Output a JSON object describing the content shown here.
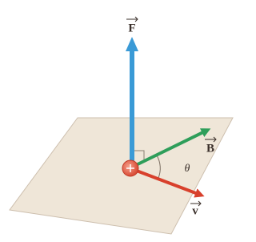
{
  "labels": {
    "force": "F",
    "field": "B",
    "velocity": "v",
    "angle": "θ"
  }
}
